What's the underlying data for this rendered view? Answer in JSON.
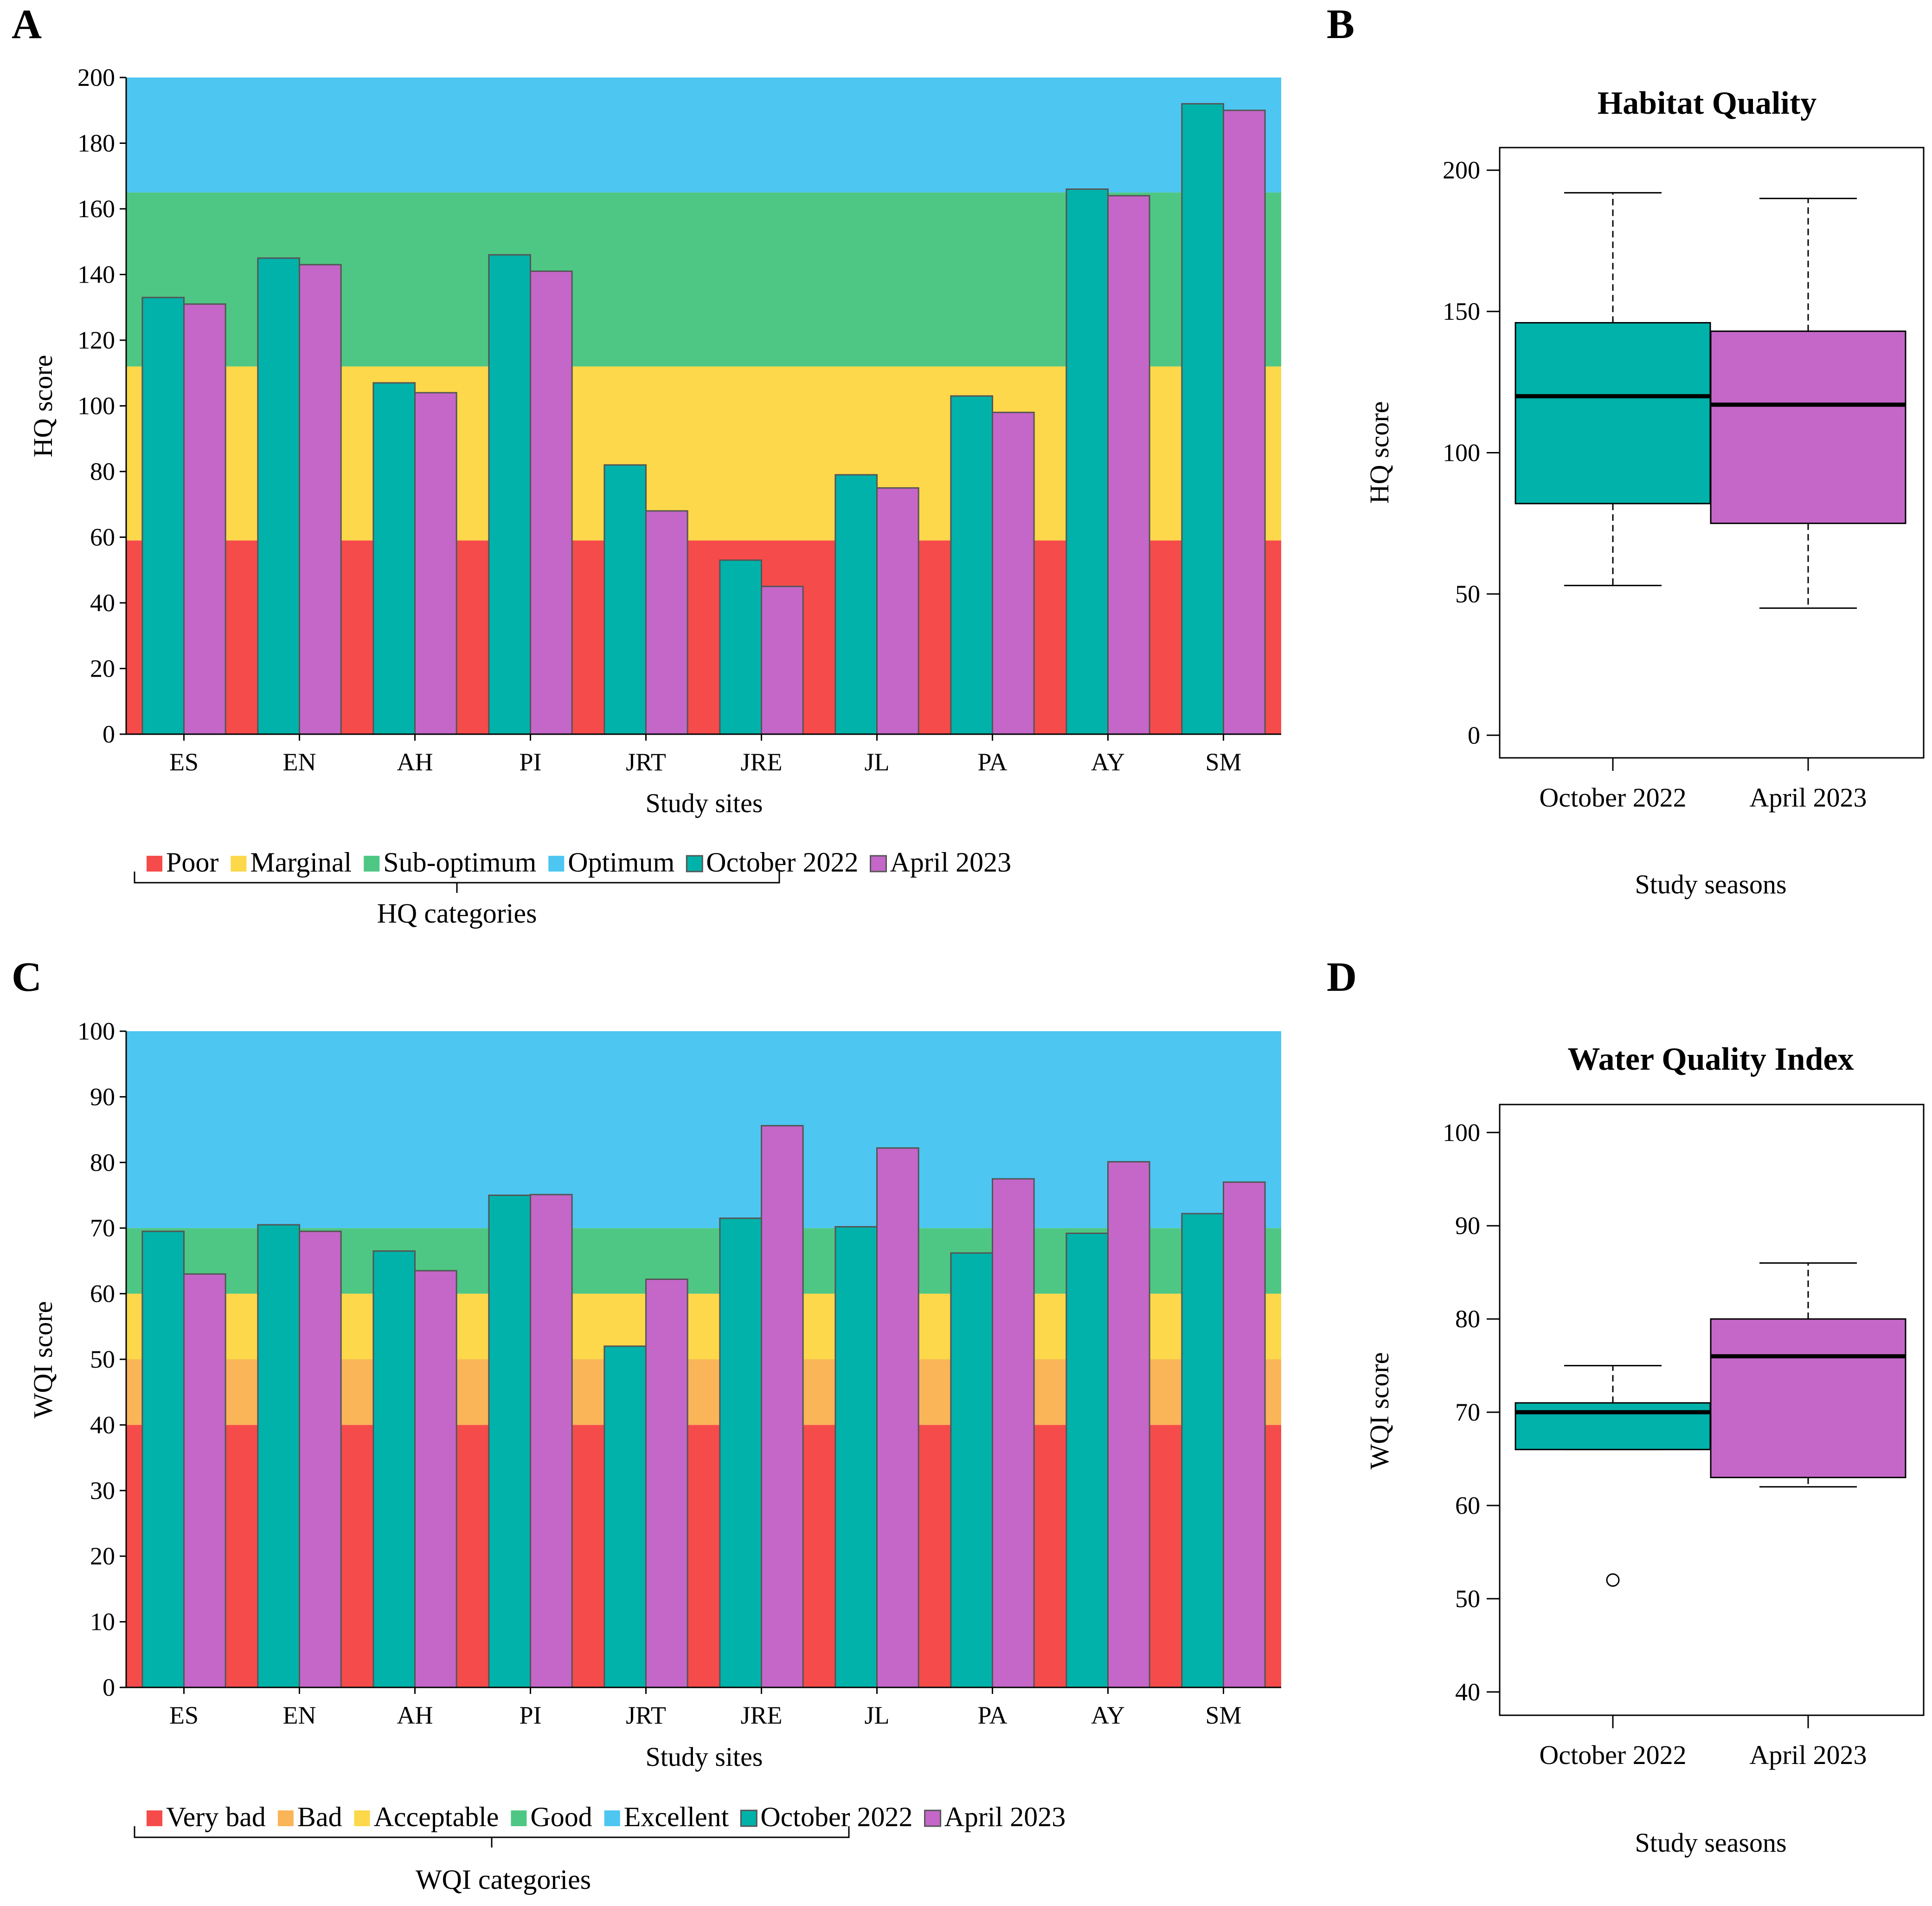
{
  "figure": {
    "panels": {
      "a": "A",
      "b": "B",
      "c": "C",
      "d": "D"
    }
  },
  "chart_data": [
    {
      "id": "A",
      "type": "bar",
      "xlabel": "Study sites",
      "ylabel": "HQ score",
      "ylim": [
        0,
        200
      ],
      "yticks": [
        0,
        20,
        40,
        60,
        80,
        100,
        120,
        140,
        160,
        180,
        200
      ],
      "categories": [
        "ES",
        "EN",
        "AH",
        "PI",
        "JRT",
        "JRE",
        "JL",
        "PA",
        "AY",
        "SM"
      ],
      "series": [
        {
          "name": "October 2022",
          "color": "#00b2aa",
          "values": [
            133,
            145,
            107,
            146,
            82,
            53,
            79,
            103,
            166,
            192
          ]
        },
        {
          "name": "April 2023",
          "color": "#c467c8",
          "values": [
            131,
            143,
            104,
            141,
            68,
            45,
            75,
            98,
            164,
            190
          ]
        }
      ],
      "bands": [
        {
          "name": "Poor",
          "from": 0,
          "to": 59,
          "color": "#f54b4b"
        },
        {
          "name": "Marginal",
          "from": 59,
          "to": 112,
          "color": "#fcd84a"
        },
        {
          "name": "Sub-optimum",
          "from": 112,
          "to": 165,
          "color": "#4fc784"
        },
        {
          "name": "Optimum",
          "from": 165,
          "to": 200,
          "color": "#4dc6f2"
        }
      ],
      "legend": [
        "Poor",
        "Marginal",
        "Sub-optimum",
        "Optimum",
        "October 2022",
        "April 2023"
      ],
      "bracket_label": "HQ categories"
    },
    {
      "id": "B",
      "type": "box",
      "title": "Habitat Quality",
      "xlabel": "Study seasons",
      "ylabel": "HQ score",
      "ylim": [
        -8,
        208
      ],
      "yticks": [
        0,
        50,
        100,
        150,
        200
      ],
      "boxes": [
        {
          "name": "October 2022",
          "color": "#00b2aa",
          "min": 53,
          "q1": 82,
          "median": 120,
          "q3": 146,
          "max": 192,
          "outliers": []
        },
        {
          "name": "April 2023",
          "color": "#c467c8",
          "min": 45,
          "q1": 75,
          "median": 117,
          "q3": 143,
          "max": 190,
          "outliers": []
        }
      ]
    },
    {
      "id": "C",
      "type": "bar",
      "xlabel": "Study sites",
      "ylabel": "WQI score",
      "ylim": [
        0,
        100
      ],
      "yticks": [
        0,
        10,
        20,
        30,
        40,
        50,
        60,
        70,
        80,
        90,
        100
      ],
      "categories": [
        "ES",
        "EN",
        "AH",
        "PI",
        "JRT",
        "JRE",
        "JL",
        "PA",
        "AY",
        "SM"
      ],
      "series": [
        {
          "name": "October 2022",
          "color": "#00b2aa",
          "values": [
            69.5,
            70.5,
            66.5,
            75,
            52,
            71.5,
            70.2,
            66.2,
            69.2,
            72.2
          ]
        },
        {
          "name": "April 2023",
          "color": "#c467c8",
          "values": [
            63,
            69.5,
            63.5,
            75.1,
            62.2,
            85.6,
            82.2,
            77.5,
            80.1,
            77
          ]
        }
      ],
      "bands": [
        {
          "name": "Very bad",
          "from": 0,
          "to": 40,
          "color": "#f54b4b"
        },
        {
          "name": "Bad",
          "from": 40,
          "to": 50,
          "color": "#fab558"
        },
        {
          "name": "Acceptable",
          "from": 50,
          "to": 60,
          "color": "#fcd84a"
        },
        {
          "name": "Good",
          "from": 60,
          "to": 70,
          "color": "#4fc784"
        },
        {
          "name": "Excellent",
          "from": 70,
          "to": 100,
          "color": "#4dc6f2"
        }
      ],
      "legend": [
        "Very bad",
        "Bad",
        "Acceptable",
        "Good",
        "Excellent",
        "October 2022",
        "April 2023"
      ],
      "bracket_label": "WQI categories"
    },
    {
      "id": "D",
      "type": "box",
      "title": "Water Quality Index",
      "xlabel": "Study seasons",
      "ylabel": "WQI score",
      "ylim": [
        37.5,
        103
      ],
      "yticks": [
        40,
        50,
        60,
        70,
        80,
        90,
        100
      ],
      "boxes": [
        {
          "name": "October 2022",
          "color": "#00b2aa",
          "min": 66,
          "q1": 66,
          "median": 70,
          "q3": 71,
          "max": 75,
          "outliers": [
            52
          ]
        },
        {
          "name": "April 2023",
          "color": "#c467c8",
          "min": 62,
          "q1": 63,
          "median": 76,
          "q3": 80,
          "max": 86,
          "outliers": []
        }
      ]
    }
  ]
}
